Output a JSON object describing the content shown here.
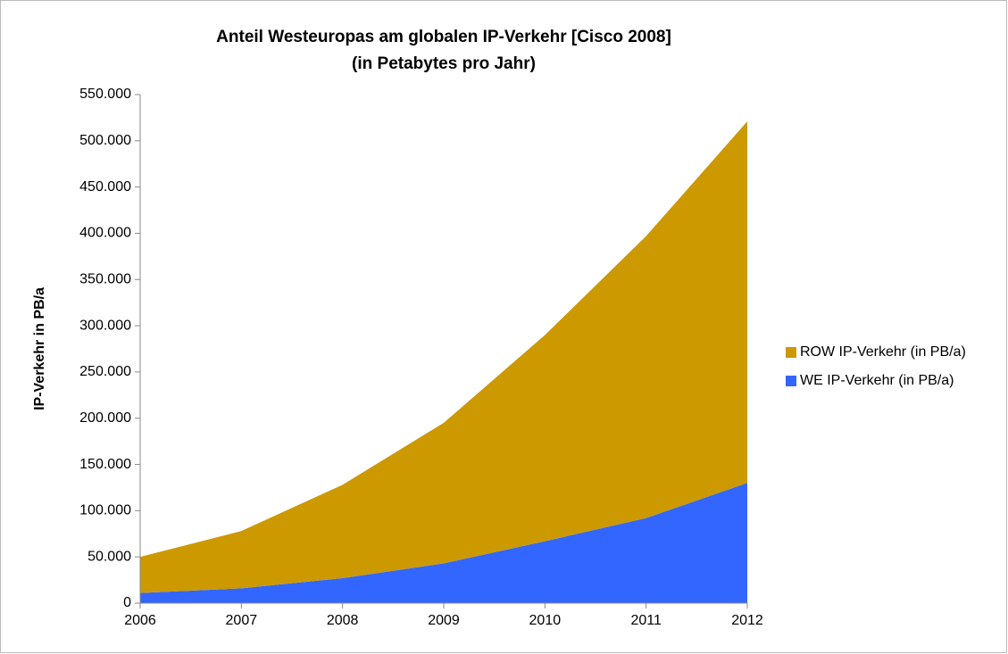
{
  "chart_data": {
    "type": "area",
    "stacked": true,
    "title": "Anteil Westeuropas am globalen IP-Verkehr [Cisco 2008]",
    "subtitle": "(in Petabytes pro Jahr)",
    "y_label": "IP-Verkehr in PB/a",
    "categories": [
      "2006",
      "2007",
      "2008",
      "2009",
      "2010",
      "2011",
      "2012"
    ],
    "series": [
      {
        "name": "WE IP-Verkehr (in PB/a)",
        "color": "#3366ff",
        "values": [
          11000,
          16000,
          27000,
          43000,
          67000,
          92000,
          130000
        ]
      },
      {
        "name": "ROW IP-Verkehr (in PB/a)",
        "color": "#cc9900",
        "values": [
          39000,
          62000,
          101000,
          152000,
          223000,
          305000,
          391000
        ]
      }
    ],
    "ylim": [
      0,
      550000
    ],
    "yticks": [
      0,
      {
        "value": 50000,
        "label": "50.000"
      },
      {
        "value": 100000,
        "label": "100.000"
      },
      {
        "value": 150000,
        "label": "150.000"
      },
      {
        "value": 200000,
        "label": "200.000"
      },
      {
        "value": 250000,
        "label": "250.000"
      },
      {
        "value": 300000,
        "label": "300.000"
      },
      {
        "value": 350000,
        "label": "350.000"
      },
      {
        "value": 400000,
        "label": "400.000"
      },
      {
        "value": 450000,
        "label": "450.000"
      },
      {
        "value": 500000,
        "label": "500.000"
      },
      {
        "value": 550000,
        "label": "550.000"
      }
    ],
    "grid": false,
    "legend": "right"
  }
}
